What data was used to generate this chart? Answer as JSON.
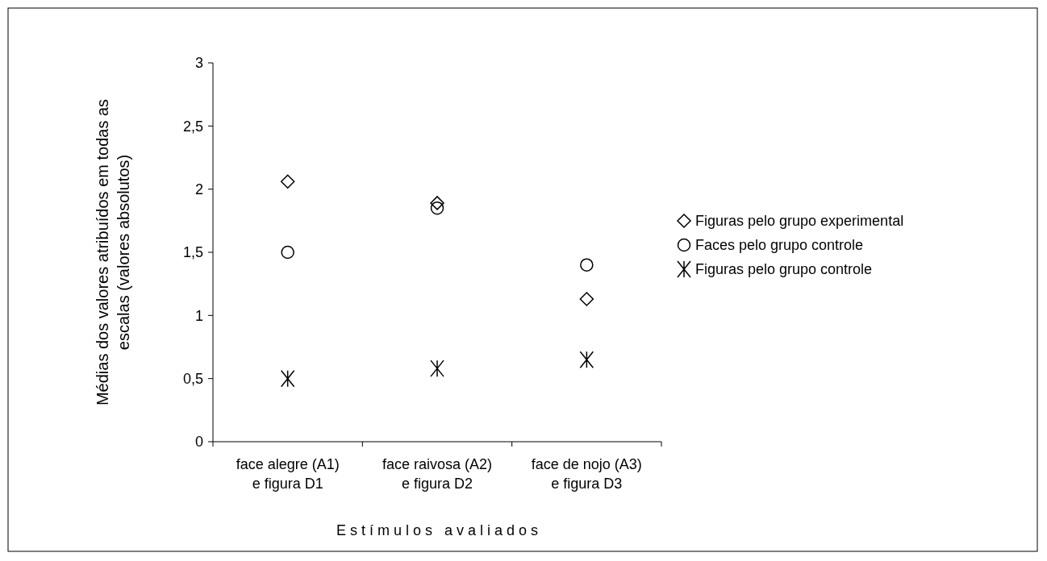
{
  "chart_data": {
    "type": "scatter",
    "xlabel": "E s t í m u l o s   a v a l i a d o s",
    "ylabel": "Médias dos valores atribuídos em todas as escalas (valores absolutos)",
    "categories": [
      "face alegre (A1) e figura D1",
      "face raivosa (A2) e figura D2",
      "face de nojo (A3) e figura D3"
    ],
    "series": [
      {
        "name": "Figuras pelo grupo experimental",
        "color": "#000000",
        "marker": "diamond",
        "values": [
          2.06,
          1.89,
          1.13
        ]
      },
      {
        "name": "Faces pelo grupo controle",
        "color": "#000000",
        "marker": "circle",
        "values": [
          1.5,
          1.85,
          1.4
        ]
      },
      {
        "name": "Figuras pelo grupo controle",
        "color": "#000000",
        "marker": "cross",
        "values": [
          0.5,
          0.58,
          0.65
        ]
      }
    ],
    "ylim": [
      0,
      3
    ],
    "yticks": [
      0,
      {
        "value": 0.5,
        "label": "0,5"
      },
      1,
      {
        "value": 1.5,
        "label": "1,5"
      },
      2,
      {
        "value": 2.5,
        "label": "2,5"
      },
      3
    ],
    "legend": "right",
    "grid": false
  }
}
